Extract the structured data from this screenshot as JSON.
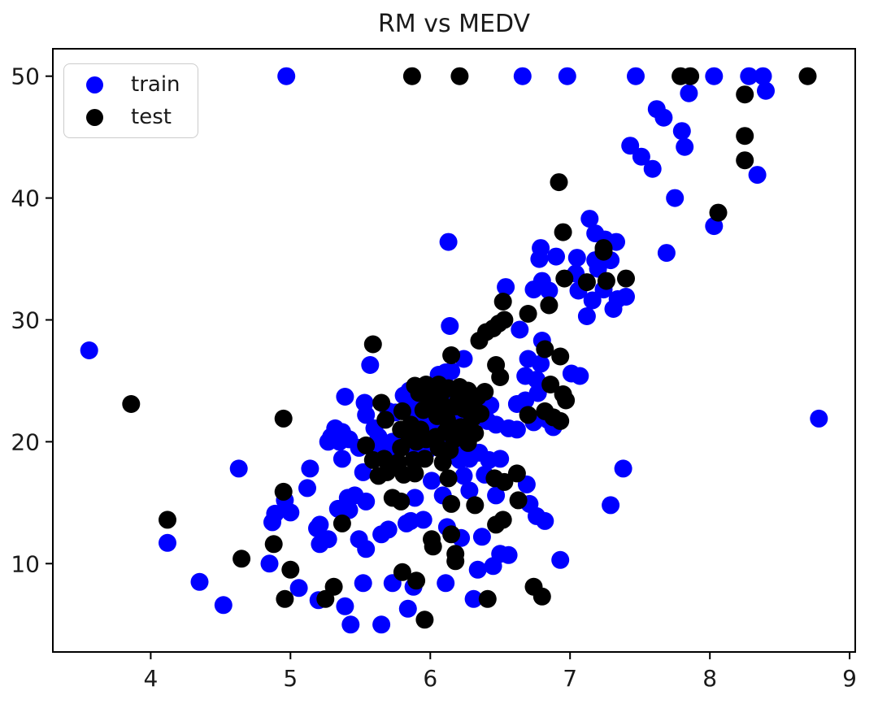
{
  "figure": {
    "title": "RM vs MEDV",
    "background_color": "#ffffff",
    "axes_color": "#000000",
    "text_color": "#1a1a1a"
  },
  "legend": {
    "position": "upper left",
    "items": [
      {
        "label": "train",
        "color": "#0000ff",
        "marker": "circle-icon"
      },
      {
        "label": "test",
        "color": "#000000",
        "marker": "circle-icon"
      }
    ]
  },
  "chart_data": {
    "type": "scatter",
    "title": "RM vs MEDV",
    "xlabel": "",
    "ylabel": "",
    "xlim": [
      3.3,
      9.04
    ],
    "ylim": [
      2.75,
      52.25
    ],
    "xticks": [
      4,
      5,
      6,
      7,
      8,
      9
    ],
    "yticks": [
      10,
      20,
      30,
      40,
      50
    ],
    "grid": false,
    "legend_position": "upper left",
    "marker_radius_px": 11,
    "series": [
      {
        "name": "train",
        "color": "#0000ff",
        "points": [
          [
            4.97,
            50
          ],
          [
            6.66,
            50
          ],
          [
            6.98,
            50
          ],
          [
            7.47,
            50
          ],
          [
            8.03,
            50
          ],
          [
            8.28,
            50
          ],
          [
            8.38,
            50
          ],
          [
            8.4,
            48.8
          ],
          [
            7.85,
            48.6
          ],
          [
            7.62,
            47.3
          ],
          [
            7.67,
            46.6
          ],
          [
            7.8,
            45.5
          ],
          [
            7.82,
            44.2
          ],
          [
            7.43,
            44.3
          ],
          [
            7.51,
            43.4
          ],
          [
            7.59,
            42.4
          ],
          [
            8.34,
            41.9
          ],
          [
            7.75,
            40.0
          ],
          [
            8.03,
            37.7
          ],
          [
            7.14,
            38.3
          ],
          [
            7.18,
            37.1
          ],
          [
            7.25,
            36.6
          ],
          [
            7.33,
            36.4
          ],
          [
            7.69,
            35.5
          ],
          [
            6.13,
            36.4
          ],
          [
            6.79,
            35.9
          ],
          [
            6.78,
            35.0
          ],
          [
            6.9,
            35.2
          ],
          [
            7.05,
            35.1
          ],
          [
            3.56,
            27.5
          ],
          [
            8.78,
            21.9
          ],
          [
            7.29,
            34.9
          ],
          [
            7.18,
            34.9
          ],
          [
            7.2,
            34.2
          ],
          [
            7.24,
            32.5
          ],
          [
            7.16,
            31.6
          ],
          [
            7.34,
            31.7
          ],
          [
            7.4,
            31.9
          ],
          [
            7.31,
            30.9
          ],
          [
            7.12,
            30.3
          ],
          [
            6.54,
            32.7
          ],
          [
            6.74,
            32.5
          ],
          [
            6.8,
            33.2
          ],
          [
            6.85,
            32.4
          ],
          [
            7.06,
            32.4
          ],
          [
            7.04,
            33.8
          ],
          [
            6.64,
            29.2
          ],
          [
            6.14,
            29.5
          ],
          [
            5.57,
            26.3
          ],
          [
            6.24,
            26.8
          ],
          [
            6.7,
            26.8
          ],
          [
            6.79,
            26.4
          ],
          [
            6.8,
            28.3
          ],
          [
            7.01,
            25.6
          ],
          [
            7.07,
            25.4
          ],
          [
            6.68,
            25.4
          ],
          [
            6.76,
            25.1
          ],
          [
            6.77,
            24.0
          ],
          [
            6.06,
            25.5
          ],
          [
            6.11,
            25.7
          ],
          [
            6.15,
            25.8
          ],
          [
            5.85,
            24.2
          ],
          [
            5.81,
            23.8
          ],
          [
            6.1,
            24.9
          ],
          [
            6.37,
            23.2
          ],
          [
            6.14,
            23.2
          ],
          [
            6.08,
            23.4
          ],
          [
            6.02,
            23.2
          ],
          [
            5.96,
            23.1
          ],
          [
            5.9,
            22.9
          ],
          [
            5.85,
            22.7
          ],
          [
            5.75,
            22.4
          ],
          [
            5.7,
            22.5
          ],
          [
            5.53,
            23.2
          ],
          [
            5.39,
            23.7
          ],
          [
            5.54,
            22.2
          ],
          [
            5.6,
            21.1
          ],
          [
            5.63,
            20.4
          ],
          [
            5.32,
            21.1
          ],
          [
            5.37,
            20.8
          ],
          [
            5.29,
            20.4
          ],
          [
            5.27,
            20.0
          ],
          [
            5.35,
            20.0
          ],
          [
            5.42,
            20.2
          ],
          [
            5.49,
            19.5
          ],
          [
            5.65,
            19.3
          ],
          [
            5.72,
            19.5
          ],
          [
            6.02,
            21.4
          ],
          [
            6.09,
            21.6
          ],
          [
            5.98,
            19.3
          ],
          [
            5.88,
            19.2
          ],
          [
            5.73,
            20.0
          ],
          [
            6.41,
            21.7
          ],
          [
            6.47,
            21.4
          ],
          [
            6.56,
            21.1
          ],
          [
            6.62,
            21.0
          ],
          [
            6.62,
            23.1
          ],
          [
            6.68,
            23.4
          ],
          [
            6.74,
            21.6
          ],
          [
            6.84,
            21.8
          ],
          [
            6.88,
            21.2
          ],
          [
            4.63,
            17.8
          ],
          [
            5.14,
            17.8
          ],
          [
            5.12,
            16.2
          ],
          [
            4.96,
            15.2
          ],
          [
            5.0,
            14.2
          ],
          [
            4.89,
            14.1
          ],
          [
            4.87,
            13.4
          ],
          [
            5.19,
            12.9
          ],
          [
            4.12,
            11.7
          ],
          [
            4.85,
            10.0
          ],
          [
            5.06,
            8.0
          ],
          [
            4.35,
            8.5
          ],
          [
            4.52,
            6.6
          ],
          [
            5.2,
            7.0
          ],
          [
            5.37,
            18.6
          ],
          [
            6.21,
            18.5
          ],
          [
            6.28,
            18.6
          ],
          [
            6.42,
            18.5
          ],
          [
            6.5,
            18.6
          ],
          [
            5.52,
            17.5
          ],
          [
            6.01,
            16.8
          ],
          [
            6.24,
            17.2
          ],
          [
            6.39,
            17.3
          ],
          [
            6.69,
            16.5
          ],
          [
            5.46,
            15.6
          ],
          [
            5.41,
            15.4
          ],
          [
            5.54,
            15.1
          ],
          [
            5.89,
            15.4
          ],
          [
            6.09,
            15.6
          ],
          [
            6.28,
            16.0
          ],
          [
            6.47,
            15.6
          ],
          [
            6.71,
            14.9
          ],
          [
            5.34,
            14.5
          ],
          [
            5.42,
            14.4
          ],
          [
            5.21,
            13.2
          ],
          [
            5.27,
            12.0
          ],
          [
            5.21,
            11.6
          ],
          [
            5.49,
            12.0
          ],
          [
            5.54,
            11.2
          ],
          [
            5.65,
            12.4
          ],
          [
            5.7,
            12.8
          ],
          [
            5.83,
            13.3
          ],
          [
            5.86,
            13.5
          ],
          [
            5.95,
            13.6
          ],
          [
            6.12,
            13.0
          ],
          [
            6.22,
            12.1
          ],
          [
            6.37,
            12.2
          ],
          [
            6.5,
            10.8
          ],
          [
            6.56,
            10.7
          ],
          [
            6.34,
            9.5
          ],
          [
            6.45,
            9.8
          ],
          [
            6.93,
            10.3
          ],
          [
            5.39,
            6.5
          ],
          [
            5.43,
            5.0
          ],
          [
            5.52,
            8.4
          ],
          [
            5.73,
            8.4
          ],
          [
            5.65,
            5.0
          ],
          [
            5.84,
            6.3
          ],
          [
            5.88,
            8.1
          ],
          [
            6.11,
            8.4
          ],
          [
            6.31,
            7.1
          ],
          [
            7.38,
            17.8
          ],
          [
            7.29,
            14.8
          ],
          [
            6.76,
            13.9
          ],
          [
            6.82,
            13.5
          ],
          [
            5.93,
            22.0
          ],
          [
            6.0,
            22.3
          ],
          [
            6.06,
            22.6
          ],
          [
            6.13,
            22.2
          ],
          [
            6.19,
            22.5
          ],
          [
            6.1,
            21.9
          ],
          [
            5.97,
            21.7
          ],
          [
            6.03,
            20.9
          ],
          [
            6.16,
            21.3
          ],
          [
            6.21,
            22.9
          ],
          [
            6.33,
            22.4
          ],
          [
            6.38,
            22.0
          ],
          [
            6.26,
            21.6
          ],
          [
            6.43,
            23.0
          ],
          [
            5.94,
            20.6
          ],
          [
            6.07,
            20.1
          ],
          [
            6.25,
            19.6
          ],
          [
            6.35,
            19.1
          ],
          [
            6.17,
            18.9
          ],
          [
            5.87,
            21.9
          ]
        ]
      },
      {
        "name": "test",
        "color": "#000000",
        "points": [
          [
            5.87,
            50
          ],
          [
            6.21,
            50
          ],
          [
            7.79,
            50
          ],
          [
            7.86,
            50
          ],
          [
            8.7,
            50
          ],
          [
            8.25,
            48.5
          ],
          [
            6.92,
            41.3
          ],
          [
            8.25,
            45.1
          ],
          [
            8.25,
            43.1
          ],
          [
            8.06,
            38.8
          ],
          [
            6.95,
            37.2
          ],
          [
            7.24,
            35.9
          ],
          [
            7.24,
            35.6
          ],
          [
            7.26,
            33.2
          ],
          [
            7.4,
            33.4
          ],
          [
            7.12,
            33.1
          ],
          [
            6.96,
            33.4
          ],
          [
            6.52,
            31.5
          ],
          [
            6.7,
            30.5
          ],
          [
            6.85,
            31.2
          ],
          [
            6.4,
            29.0
          ],
          [
            6.45,
            29.3
          ],
          [
            6.49,
            29.7
          ],
          [
            6.53,
            30.0
          ],
          [
            6.35,
            28.3
          ],
          [
            5.59,
            28.0
          ],
          [
            6.15,
            27.1
          ],
          [
            6.47,
            26.3
          ],
          [
            6.5,
            25.3
          ],
          [
            6.82,
            27.6
          ],
          [
            6.93,
            27.0
          ],
          [
            6.86,
            24.7
          ],
          [
            6.95,
            23.9
          ],
          [
            6.97,
            23.4
          ],
          [
            3.86,
            23.1
          ],
          [
            4.95,
            21.9
          ],
          [
            5.65,
            23.2
          ],
          [
            5.68,
            21.8
          ],
          [
            5.54,
            19.7
          ],
          [
            5.89,
            24.6
          ],
          [
            5.97,
            24.7
          ],
          [
            6.02,
            24.4
          ],
          [
            5.92,
            24.0
          ],
          [
            6.06,
            24.7
          ],
          [
            6.13,
            24.4
          ],
          [
            6.21,
            24.5
          ],
          [
            6.27,
            24.2
          ],
          [
            6.29,
            23.9
          ],
          [
            6.24,
            23.8
          ],
          [
            6.2,
            23.4
          ],
          [
            6.27,
            23.4
          ],
          [
            6.34,
            23.7
          ],
          [
            6.31,
            22.9
          ],
          [
            6.24,
            22.7
          ],
          [
            6.18,
            22.9
          ],
          [
            5.8,
            22.5
          ],
          [
            5.79,
            21.0
          ],
          [
            5.86,
            21.4
          ],
          [
            5.93,
            21.0
          ],
          [
            5.85,
            20.4
          ],
          [
            5.9,
            20.0
          ],
          [
            5.97,
            20.2
          ],
          [
            6.04,
            20.4
          ],
          [
            6.11,
            20.8
          ],
          [
            6.18,
            21.0
          ],
          [
            6.17,
            20.2
          ],
          [
            6.24,
            20.5
          ],
          [
            6.27,
            19.9
          ],
          [
            6.32,
            20.7
          ],
          [
            6.06,
            19.5
          ],
          [
            6.14,
            19.3
          ],
          [
            5.79,
            19.5
          ],
          [
            6.7,
            22.2
          ],
          [
            6.82,
            22.5
          ],
          [
            6.88,
            22.0
          ],
          [
            6.93,
            21.7
          ],
          [
            4.95,
            15.9
          ],
          [
            4.12,
            13.6
          ],
          [
            4.88,
            11.6
          ],
          [
            4.65,
            10.4
          ],
          [
            5.0,
            9.5
          ],
          [
            4.96,
            7.1
          ],
          [
            5.59,
            18.5
          ],
          [
            5.67,
            18.6
          ],
          [
            5.77,
            18.3
          ],
          [
            5.88,
            18.5
          ],
          [
            5.96,
            18.6
          ],
          [
            6.09,
            18.3
          ],
          [
            5.63,
            17.2
          ],
          [
            5.69,
            17.5
          ],
          [
            5.81,
            17.3
          ],
          [
            5.89,
            17.4
          ],
          [
            6.13,
            17.0
          ],
          [
            6.46,
            17.0
          ],
          [
            6.53,
            16.7
          ],
          [
            6.62,
            17.4
          ],
          [
            5.73,
            15.4
          ],
          [
            5.79,
            15.1
          ],
          [
            6.15,
            14.9
          ],
          [
            6.32,
            14.8
          ],
          [
            6.63,
            15.2
          ],
          [
            5.37,
            13.3
          ],
          [
            6.01,
            12.0
          ],
          [
            6.02,
            11.4
          ],
          [
            6.15,
            12.4
          ],
          [
            6.18,
            10.8
          ],
          [
            6.18,
            10.2
          ],
          [
            6.47,
            13.2
          ],
          [
            6.52,
            13.6
          ],
          [
            5.31,
            8.1
          ],
          [
            5.25,
            7.1
          ],
          [
            5.96,
            5.4
          ],
          [
            5.8,
            9.3
          ],
          [
            5.9,
            8.6
          ],
          [
            6.41,
            7.1
          ],
          [
            6.74,
            8.1
          ],
          [
            6.8,
            7.3
          ],
          [
            6.0,
            23.3
          ],
          [
            6.09,
            23.0
          ],
          [
            6.05,
            22.1
          ],
          [
            6.12,
            21.8
          ],
          [
            6.22,
            21.2
          ],
          [
            6.3,
            21.9
          ],
          [
            6.36,
            22.3
          ],
          [
            5.95,
            22.6
          ],
          [
            6.08,
            24.0
          ],
          [
            6.39,
            24.1
          ]
        ]
      }
    ]
  }
}
